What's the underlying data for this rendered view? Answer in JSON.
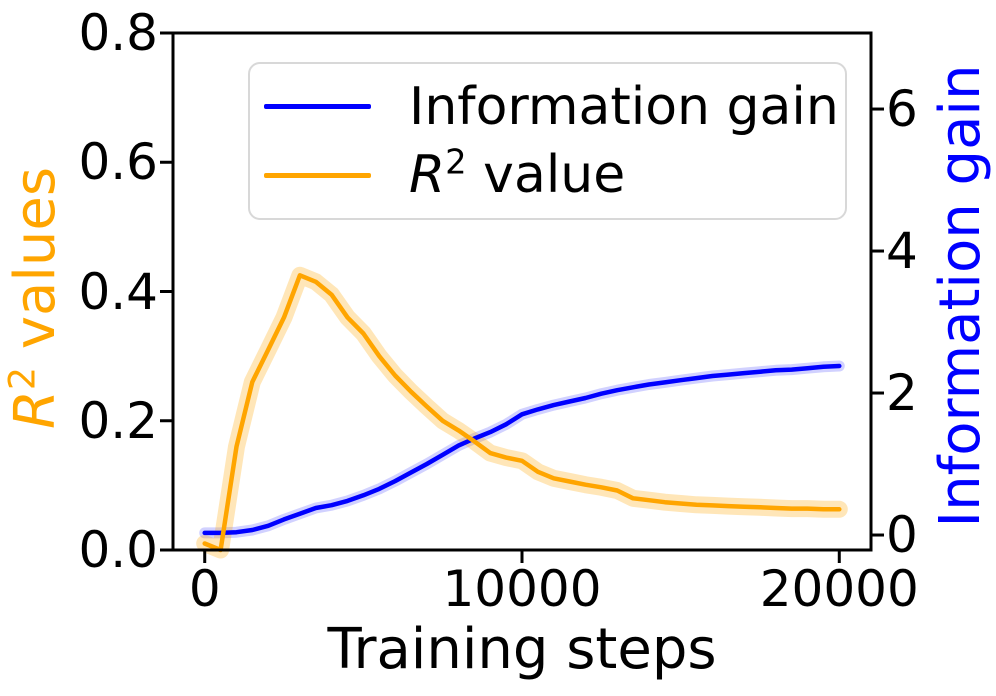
{
  "figure": {
    "kind": "dual-axis line chart",
    "background": "#ffffff",
    "spine_color": "#000000"
  },
  "chart_data": {
    "type": "line",
    "title": "",
    "xlabel": "Training steps",
    "ylabel_left": "R² values",
    "ylabel_left_parts": {
      "base": "R",
      "sup": "2",
      "rest": " values"
    },
    "ylabel_right": "Information gain",
    "axis_colors": {
      "left_label": "#FFA500",
      "right_label": "#0000FF",
      "tick_labels": "#000000"
    },
    "grid": false,
    "xlim": [
      -1000,
      21000
    ],
    "ylim_left": [
      0.0,
      0.8
    ],
    "ylim_right": [
      -0.211,
      7.071
    ],
    "x_ticks": [
      {
        "value": 0,
        "label": "0"
      },
      {
        "value": 10000,
        "label": "10000"
      },
      {
        "value": 20000,
        "label": "20000"
      }
    ],
    "y_ticks_left": [
      {
        "value": 0.0,
        "label": "0.0"
      },
      {
        "value": 0.2,
        "label": "0.2"
      },
      {
        "value": 0.4,
        "label": "0.4"
      },
      {
        "value": 0.6,
        "label": "0.6"
      },
      {
        "value": 0.8,
        "label": "0.8"
      }
    ],
    "y_ticks_right": [
      {
        "value": 0,
        "label": "0"
      },
      {
        "value": 2,
        "label": "2"
      },
      {
        "value": 4,
        "label": "4"
      },
      {
        "value": 6,
        "label": "6"
      }
    ],
    "x": [
      0,
      500,
      1000,
      1500,
      2000,
      2500,
      3000,
      3500,
      4000,
      4500,
      5000,
      5500,
      6000,
      6500,
      7000,
      7500,
      8000,
      8500,
      9000,
      9500,
      10000,
      10500,
      11000,
      11500,
      12000,
      12500,
      13000,
      13500,
      14000,
      14500,
      15000,
      15500,
      16000,
      16500,
      17000,
      17500,
      18000,
      18500,
      19000,
      19500,
      20000
    ],
    "series": [
      {
        "name": "Information gain",
        "axis": "right",
        "color": "#0000FF",
        "band_color": "rgba(0,0,255,0.18)",
        "line_width": 4.5,
        "band_width": 11,
        "values": [
          0.03,
          0.03,
          0.04,
          0.07,
          0.13,
          0.22,
          0.3,
          0.38,
          0.42,
          0.48,
          0.56,
          0.65,
          0.76,
          0.88,
          1.0,
          1.13,
          1.26,
          1.36,
          1.45,
          1.56,
          1.7,
          1.77,
          1.83,
          1.88,
          1.93,
          1.99,
          2.04,
          2.08,
          2.12,
          2.15,
          2.18,
          2.21,
          2.24,
          2.26,
          2.28,
          2.3,
          2.32,
          2.33,
          2.35,
          2.37,
          2.38
        ]
      },
      {
        "name": "R² value",
        "axis": "left",
        "color": "#FFA500",
        "band_color": "rgba(255,165,0,0.28)",
        "line_width": 4.5,
        "band_width": 17,
        "values": [
          0.01,
          0.0,
          0.16,
          0.26,
          0.31,
          0.36,
          0.425,
          0.415,
          0.395,
          0.36,
          0.335,
          0.3,
          0.27,
          0.245,
          0.222,
          0.2,
          0.185,
          0.168,
          0.15,
          0.143,
          0.138,
          0.121,
          0.111,
          0.106,
          0.101,
          0.097,
          0.092,
          0.08,
          0.077,
          0.074,
          0.072,
          0.07,
          0.069,
          0.068,
          0.067,
          0.066,
          0.065,
          0.064,
          0.064,
          0.063,
          0.063
        ]
      }
    ],
    "legend": {
      "position": "upper center",
      "border_color": "#d8d8d8",
      "entries": [
        {
          "label": "Information gain",
          "color": "#0000FF"
        },
        {
          "label": "R² value",
          "label_base": "R",
          "label_sup": "2",
          "label_rest": " value",
          "color": "#FFA500"
        }
      ]
    }
  }
}
